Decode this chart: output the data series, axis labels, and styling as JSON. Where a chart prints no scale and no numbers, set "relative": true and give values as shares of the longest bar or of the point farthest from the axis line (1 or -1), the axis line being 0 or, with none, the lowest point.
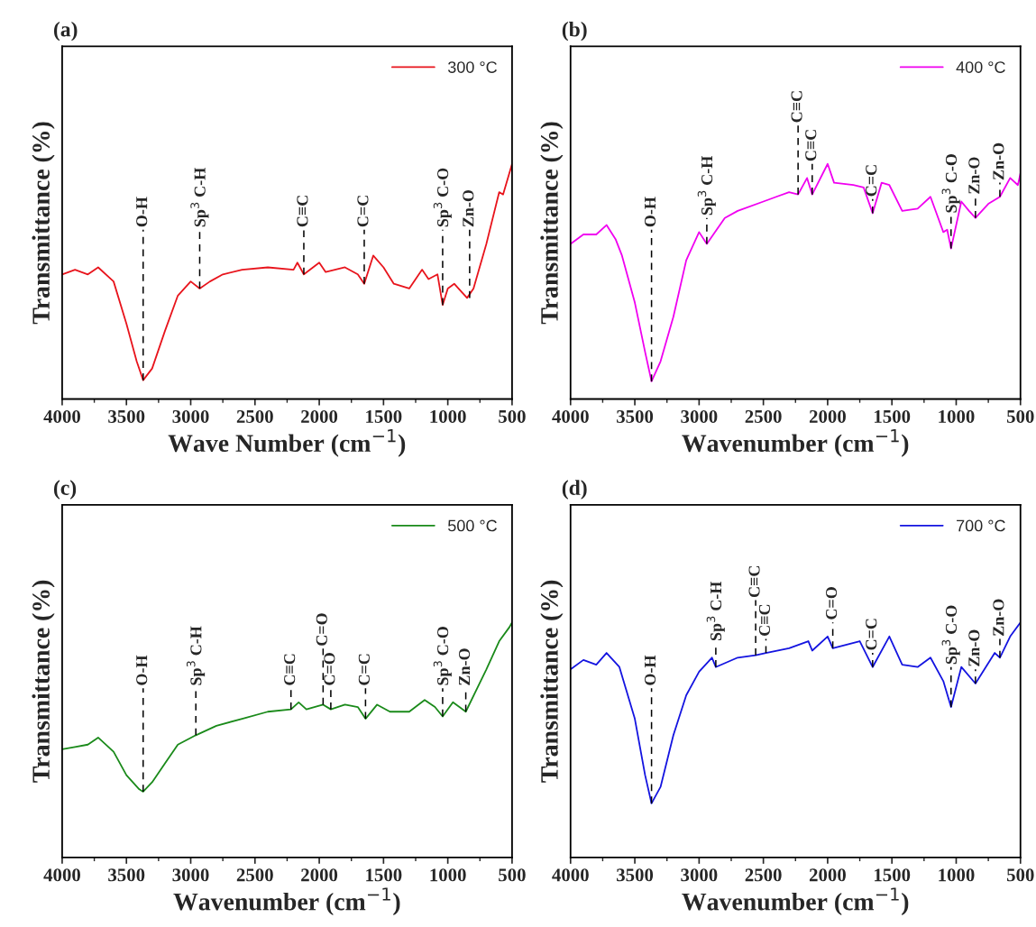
{
  "chart_data": [
    {
      "type": "line",
      "title": "(a)",
      "xlabel": "Wave Number (cm$^{−1}$)",
      "ylabel": "Transmittance (%)",
      "relative": true,
      "legend": "top right",
      "xlim": [
        4000,
        500
      ],
      "xticks": [
        4000,
        3500,
        3000,
        2500,
        2000,
        1500,
        1000,
        500
      ],
      "series": [
        {
          "name": "300 °C",
          "color": "#e8141c",
          "x": [
            4000,
            3900,
            3800,
            3720,
            3600,
            3500,
            3420,
            3370,
            3300,
            3200,
            3100,
            3000,
            2930,
            2850,
            2750,
            2600,
            2400,
            2200,
            2170,
            2120,
            2000,
            1950,
            1800,
            1700,
            1650,
            1580,
            1500,
            1420,
            1300,
            1200,
            1150,
            1080,
            1040,
            1000,
            950,
            850,
            800,
            700,
            600,
            570,
            500
          ],
          "values": [
            0.53,
            0.55,
            0.53,
            0.56,
            0.5,
            0.32,
            0.16,
            0.08,
            0.13,
            0.29,
            0.44,
            0.5,
            0.47,
            0.5,
            0.53,
            0.55,
            0.56,
            0.55,
            0.58,
            0.53,
            0.58,
            0.54,
            0.56,
            0.53,
            0.49,
            0.61,
            0.56,
            0.49,
            0.47,
            0.55,
            0.51,
            0.53,
            0.4,
            0.47,
            0.49,
            0.43,
            0.47,
            0.66,
            0.88,
            0.87,
            1
          ]
        }
      ],
      "annotations": [
        {
          "text": "O-H",
          "x": 3370,
          "y": 0.08
        },
        {
          "text": "Sp$^{3}$ C-H",
          "x": 2930,
          "y": 0.47
        },
        {
          "text": "C≡C",
          "x": 2120,
          "y": 0.53
        },
        {
          "text": "C=C",
          "x": 1650,
          "y": 0.49
        },
        {
          "text": "Sp$^{3}$ C-O",
          "x": 1040,
          "y": 0.4
        },
        {
          "text": "Zn-O",
          "x": 830,
          "y": 0.43
        }
      ]
    },
    {
      "type": "line",
      "title": "(b)",
      "xlabel": "Wavenumber (cm$^{−1}$)",
      "ylabel": "Transmittance (%)",
      "relative": true,
      "legend": "top right",
      "xlim": [
        4000,
        500
      ],
      "xticks": [
        4000,
        3500,
        3000,
        2500,
        2000,
        1500,
        1000,
        500
      ],
      "series": [
        {
          "name": "400 °C",
          "color": "#f000f0",
          "x": [
            4000,
            3900,
            3800,
            3720,
            3650,
            3600,
            3500,
            3420,
            3370,
            3300,
            3200,
            3100,
            3000,
            2940,
            2800,
            2700,
            2500,
            2400,
            2300,
            2230,
            2160,
            2120,
            2000,
            1950,
            1800,
            1720,
            1650,
            1580,
            1520,
            1420,
            1300,
            1200,
            1100,
            1070,
            1040,
            960,
            900,
            850,
            750,
            660,
            580,
            520,
            500
          ],
          "values": [
            0.66,
            0.7,
            0.7,
            0.74,
            0.68,
            0.61,
            0.41,
            0.2,
            0.075,
            0.16,
            0.35,
            0.59,
            0.71,
            0.66,
            0.77,
            0.8,
            0.84,
            0.86,
            0.88,
            0.87,
            0.94,
            0.87,
            1,
            0.92,
            0.91,
            0.9,
            0.79,
            0.92,
            0.91,
            0.8,
            0.81,
            0.86,
            0.71,
            0.72,
            0.64,
            0.84,
            0.8,
            0.77,
            0.83,
            0.86,
            0.94,
            0.91,
            0.96
          ]
        }
      ],
      "annotations": [
        {
          "text": "O-H",
          "x": 3370,
          "y": 0.075
        },
        {
          "text": "Sp$^{3}$ C-H",
          "x": 2940,
          "y": 0.66
        },
        {
          "text": "C≡C",
          "x": 2230,
          "y": 0.87
        },
        {
          "text": "C≡C",
          "x": 2120,
          "y": 0.87
        },
        {
          "text": "C=C",
          "x": 1650,
          "y": 0.79
        },
        {
          "text": "Sp$^{3}$ C-O",
          "x": 1040,
          "y": 0.64
        },
        {
          "text": "Zn-O",
          "x": 850,
          "y": 0.77
        },
        {
          "text": "Zn-O",
          "x": 660,
          "y": 0.86
        }
      ]
    },
    {
      "type": "line",
      "title": "(c)",
      "xlabel": "Wavenumber (cm$^{−1}$)",
      "ylabel": "Transmittance (%)",
      "relative": true,
      "legend": "top right",
      "xlim": [
        4000,
        500
      ],
      "xticks": [
        4000,
        3500,
        3000,
        2500,
        2000,
        1500,
        1000,
        500
      ],
      "series": [
        {
          "name": "500 °C",
          "color": "#1a8a1a",
          "x": [
            4000,
            3900,
            3800,
            3720,
            3600,
            3500,
            3400,
            3370,
            3300,
            3200,
            3100,
            2960,
            2800,
            2600,
            2400,
            2220,
            2160,
            2100,
            1970,
            1910,
            1800,
            1700,
            1640,
            1550,
            1450,
            1300,
            1180,
            1100,
            1040,
            960,
            860,
            700,
            600,
            520,
            500
          ],
          "values": [
            0.46,
            0.47,
            0.48,
            0.51,
            0.45,
            0.35,
            0.29,
            0.28,
            0.32,
            0.4,
            0.48,
            0.52,
            0.56,
            0.59,
            0.62,
            0.63,
            0.66,
            0.63,
            0.65,
            0.63,
            0.65,
            0.64,
            0.59,
            0.65,
            0.62,
            0.62,
            0.67,
            0.64,
            0.6,
            0.66,
            0.62,
            0.8,
            0.92,
            0.98,
            1
          ]
        }
      ],
      "annotations": [
        {
          "text": "O-H",
          "x": 3370,
          "y": 0.28
        },
        {
          "text": "Sp$^{3}$ C-H",
          "x": 2960,
          "y": 0.52
        },
        {
          "text": "C≡C",
          "x": 2220,
          "y": 0.63
        },
        {
          "text": "C=O",
          "x": 1970,
          "y": 0.65
        },
        {
          "text": "C=O",
          "x": 1910,
          "y": 0.63
        },
        {
          "text": "C=C",
          "x": 1640,
          "y": 0.59
        },
        {
          "text": "Sp$^{3}$ C-O",
          "x": 1040,
          "y": 0.6
        },
        {
          "text": "Zn-O",
          "x": 860,
          "y": 0.62
        }
      ]
    },
    {
      "type": "line",
      "title": "(d)",
      "xlabel": "Wavenumber (cm$^{−1}$)",
      "ylabel": "Transmittance (%)",
      "relative": true,
      "legend": "top right",
      "xlim": [
        4000,
        500
      ],
      "xticks": [
        4000,
        3500,
        3000,
        2500,
        2000,
        1500,
        1000,
        500
      ],
      "series": [
        {
          "name": "700 °C",
          "color": "#1414e0",
          "x": [
            4000,
            3900,
            3800,
            3720,
            3620,
            3500,
            3420,
            3370,
            3300,
            3200,
            3100,
            3000,
            2900,
            2870,
            2700,
            2560,
            2480,
            2300,
            2150,
            2120,
            2000,
            1960,
            1750,
            1650,
            1520,
            1420,
            1300,
            1200,
            1100,
            1040,
            960,
            850,
            700,
            660,
            580,
            500
          ],
          "values": [
            0.8,
            0.84,
            0.82,
            0.87,
            0.81,
            0.59,
            0.35,
            0.23,
            0.3,
            0.52,
            0.69,
            0.79,
            0.85,
            0.81,
            0.85,
            0.86,
            0.87,
            0.89,
            0.92,
            0.88,
            0.94,
            0.89,
            0.92,
            0.81,
            0.94,
            0.82,
            0.81,
            0.85,
            0.75,
            0.64,
            0.81,
            0.74,
            0.87,
            0.85,
            0.94,
            1
          ]
        }
      ],
      "annotations": [
        {
          "text": "O-H",
          "x": 3370,
          "y": 0.23
        },
        {
          "text": "Sp$^{3}$ C-H",
          "x": 2870,
          "y": 0.81
        },
        {
          "text": "C≡C",
          "x": 2560,
          "y": 0.86
        },
        {
          "text": "C≡C",
          "x": 2480,
          "y": 0.87
        },
        {
          "text": "C=O",
          "x": 1960,
          "y": 0.89
        },
        {
          "text": "C=C",
          "x": 1650,
          "y": 0.81
        },
        {
          "text": "Sp$^{3}$ C-O",
          "x": 1040,
          "y": 0.64
        },
        {
          "text": "Zn-O",
          "x": 850,
          "y": 0.74
        },
        {
          "text": "Zn-O",
          "x": 660,
          "y": 0.85
        }
      ]
    }
  ]
}
